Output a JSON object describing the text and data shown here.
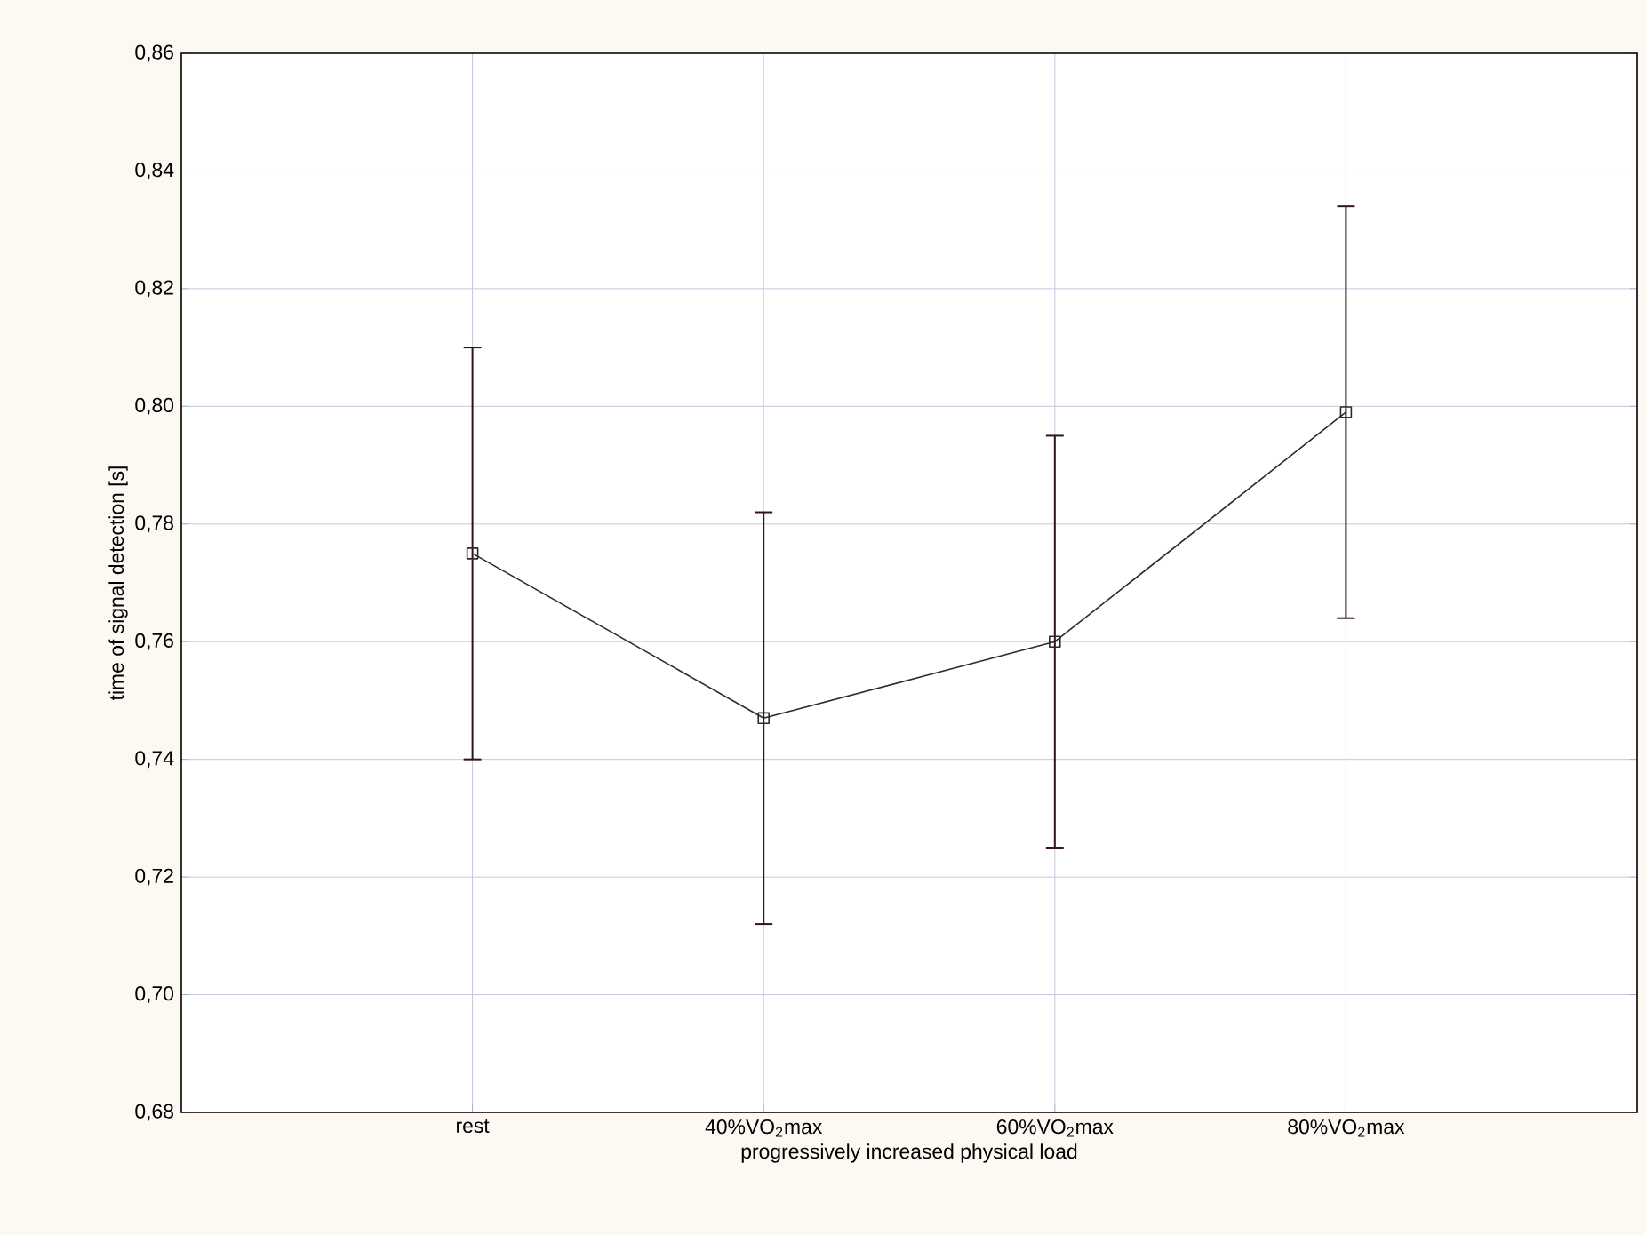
{
  "chart_data": {
    "type": "line",
    "xlabel": "progressively increased physical load",
    "ylabel": "time of signal detection [s]",
    "categories": [
      "rest",
      "40%VO$_{2}$max",
      "60%VO$_{2}$max",
      "80%VO$_{2}$max"
    ],
    "series": [
      {
        "color": "#2b2b2b",
        "values": [
          0.775,
          0.747,
          0.76,
          0.799
        ],
        "errors": [
          0.035,
          0.035,
          0.035,
          0.035
        ]
      }
    ],
    "ylim": [
      0.68,
      0.86
    ],
    "yticks": [
      {
        "value": 0.68,
        "label": "0,68"
      },
      {
        "value": 0.7,
        "label": "0,70"
      },
      {
        "value": 0.72,
        "label": "0,72"
      },
      {
        "value": 0.74,
        "label": "0,74"
      },
      {
        "value": 0.76,
        "label": "0,76"
      },
      {
        "value": 0.78,
        "label": "0,78"
      },
      {
        "value": 0.8,
        "label": "0,80"
      },
      {
        "value": 0.82,
        "label": "0,82"
      },
      {
        "value": 0.84,
        "label": "0,84"
      },
      {
        "value": 0.86,
        "label": "0,86"
      }
    ],
    "grid": true,
    "marker": "square",
    "line_style": "solid"
  }
}
